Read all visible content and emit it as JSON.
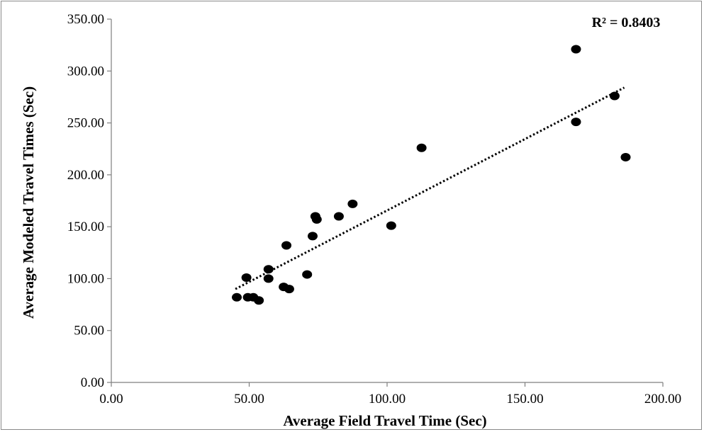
{
  "chart_data": {
    "type": "scatter",
    "title": "",
    "xlabel": "Average Field Travel Time (Sec)",
    "ylabel": "Average Modeled Travel Times (Sec)",
    "xlim": [
      0,
      200
    ],
    "ylim": [
      0,
      350
    ],
    "x_ticks": [
      0,
      50,
      100,
      150,
      200
    ],
    "y_ticks": [
      0,
      50,
      100,
      150,
      200,
      250,
      300,
      350
    ],
    "x_tick_labels": [
      "0.00",
      "50.00",
      "100.00",
      "150.00",
      "200.00"
    ],
    "y_tick_labels": [
      "0.00",
      "50.00",
      "100.00",
      "150.00",
      "200.00",
      "250.00",
      "300.00",
      "350.00"
    ],
    "grid": false,
    "legend": "none",
    "marker_color": "#000000",
    "points": [
      {
        "x": 45.5,
        "y": 82
      },
      {
        "x": 49,
        "y": 101
      },
      {
        "x": 49.5,
        "y": 82
      },
      {
        "x": 51.5,
        "y": 82
      },
      {
        "x": 53.5,
        "y": 79
      },
      {
        "x": 57,
        "y": 109
      },
      {
        "x": 57,
        "y": 100
      },
      {
        "x": 62.5,
        "y": 92
      },
      {
        "x": 63.5,
        "y": 132
      },
      {
        "x": 64.5,
        "y": 90
      },
      {
        "x": 71,
        "y": 104
      },
      {
        "x": 73,
        "y": 141
      },
      {
        "x": 74,
        "y": 160
      },
      {
        "x": 74.5,
        "y": 157
      },
      {
        "x": 82.5,
        "y": 160
      },
      {
        "x": 87.5,
        "y": 172
      },
      {
        "x": 101.5,
        "y": 151
      },
      {
        "x": 112.5,
        "y": 226
      },
      {
        "x": 168.5,
        "y": 321
      },
      {
        "x": 168.5,
        "y": 251
      },
      {
        "x": 182.5,
        "y": 276
      },
      {
        "x": 186.5,
        "y": 217
      }
    ],
    "trendline": {
      "style": "dotted",
      "x": [
        45,
        186
      ],
      "y": [
        90,
        284
      ]
    },
    "annotation": "R² = 0.8403"
  }
}
